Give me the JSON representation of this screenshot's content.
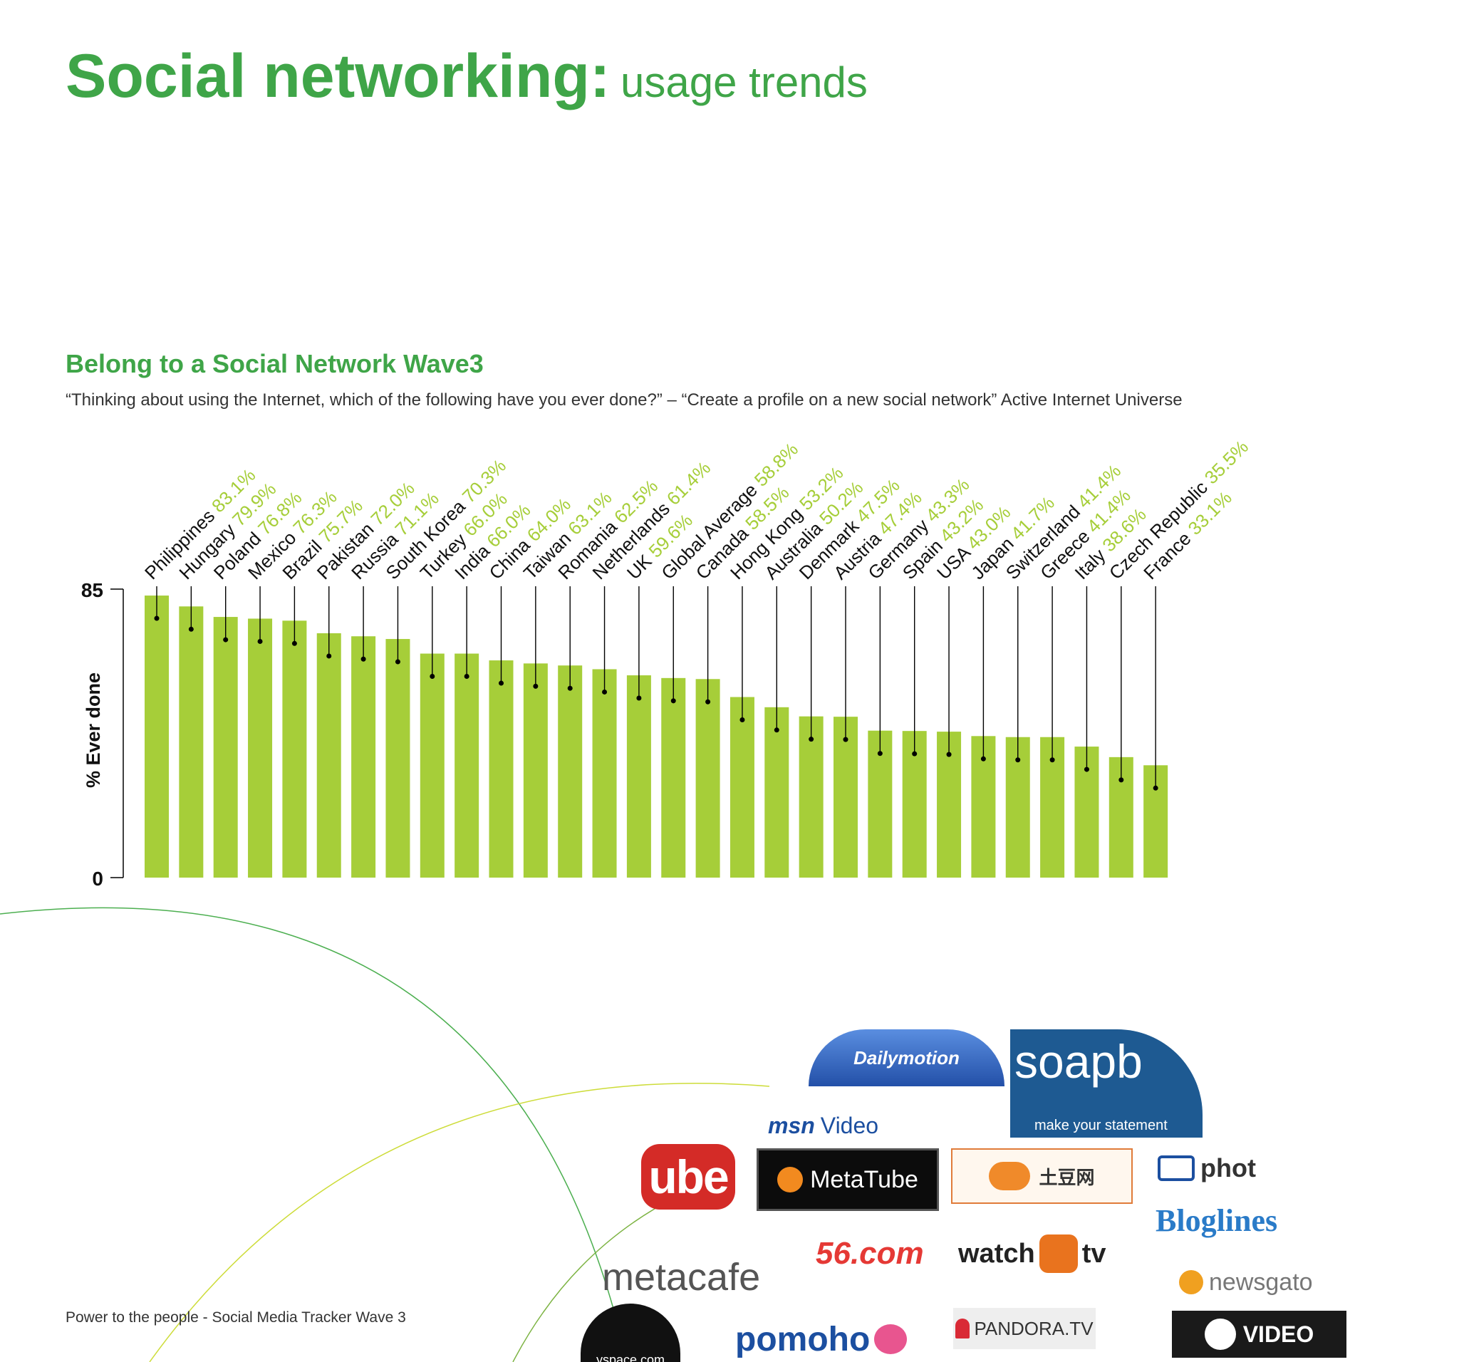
{
  "page": {
    "title_bold": "Social networking:",
    "title_light": "usage trends",
    "footer": "Power to the people - Social Media Tracker Wave 3"
  },
  "colors": {
    "brand_green": "#3fa548",
    "bar_green": "#a6ce39",
    "axis": "#000000",
    "text": "#333333"
  },
  "chart_data": {
    "type": "bar",
    "title": "Belong to a Social Network Wave3",
    "subtitle": "“Thinking about using the Internet, which of the following have you ever done?” – “Create a profile on a new social network” Active Internet Universe",
    "ylabel": "% Ever done",
    "xlabel": "",
    "ylim": [
      0,
      85
    ],
    "yticks": [
      "0",
      "85"
    ],
    "grid": false,
    "categories": [
      "Philippines",
      "Hungary",
      "Poland",
      "Mexico",
      "Brazil",
      "Pakistan",
      "Russia",
      "South Korea",
      "Turkey",
      "India",
      "China",
      "Taiwan",
      "Romania",
      "Netherlands",
      "UK",
      "Global Average",
      "Canada",
      "Hong Kong",
      "Australia",
      "Denmark",
      "Austria",
      "Germany",
      "Spain",
      "USA",
      "Japan",
      "Switzerland",
      "Greece",
      "Italy",
      "Czech Republic",
      "France"
    ],
    "values": [
      83.1,
      79.9,
      76.8,
      76.3,
      75.7,
      72.0,
      71.1,
      70.3,
      66.0,
      66.0,
      64.0,
      63.1,
      62.5,
      61.4,
      59.6,
      58.8,
      58.5,
      53.2,
      50.2,
      47.5,
      47.4,
      43.3,
      43.2,
      43.0,
      41.7,
      41.4,
      41.4,
      38.6,
      35.5,
      33.1
    ],
    "value_labels": [
      "83.1%",
      "79.9%",
      "76.8%",
      "76.3%",
      "75.7%",
      "72.0%",
      "71.1%",
      "70.3%",
      "66.0%",
      "66.0%",
      "64.0%",
      "63.1%",
      "62.5%",
      "61.4%",
      "59.6%",
      "58.8%",
      "58.5%",
      "53.2%",
      "50.2%",
      "47.5%",
      "47.4%",
      "43.3%",
      "43.2%",
      "43.0%",
      "41.7%",
      "41.4%",
      "41.4%",
      "38.6%",
      "35.5%",
      "33.1%"
    ]
  },
  "logos": {
    "dailymotion": "Dailymotion",
    "soapbox_name": "soapb",
    "soapbox_tag": "make your statement",
    "msn": "msn",
    "msn_video": "Video",
    "youtube": "ube",
    "metatube": "MetaTube",
    "tudou": "土豆网",
    "photobucket": "phot",
    "bloglines": "Bloglines",
    "site56": "56.com",
    "watch": "watch",
    "watch_tv": "tv",
    "newsgator": "newsgato",
    "metacafe": "metacafe",
    "pandora": "PANDORA.TV",
    "yahoo_video": "VIDEO",
    "pomoho": "pomoho",
    "myspace": "yspace.com"
  }
}
